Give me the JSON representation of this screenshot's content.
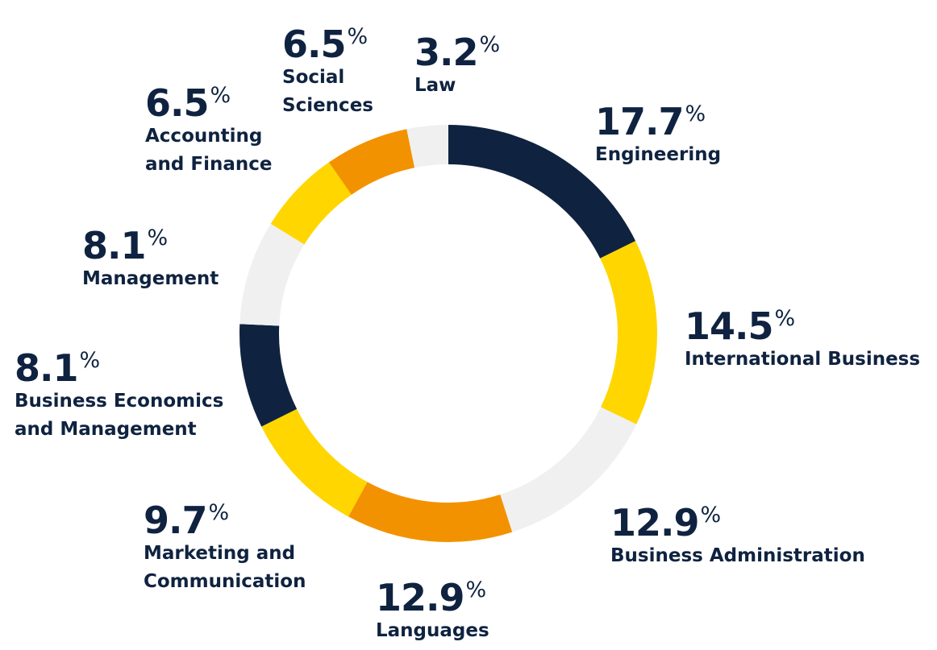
{
  "chart_data": {
    "type": "pie",
    "donut": true,
    "percent_symbol": "%",
    "colors": {
      "navy": "#0f2340",
      "yellow": "#ffd600",
      "light_gray": "#f0f0f0",
      "orange": "#f39200"
    },
    "slices": [
      {
        "key": "engineering",
        "value": 17.7,
        "value_label": "17.7",
        "label_lines": [
          "Engineering"
        ],
        "color": "#0f2340"
      },
      {
        "key": "international-business",
        "value": 14.5,
        "value_label": "14.5",
        "label_lines": [
          "International Business"
        ],
        "color": "#ffd600"
      },
      {
        "key": "business-administration",
        "value": 12.9,
        "value_label": "12.9",
        "label_lines": [
          "Business Administration"
        ],
        "color": "#f0f0f0"
      },
      {
        "key": "languages",
        "value": 12.9,
        "value_label": "12.9",
        "label_lines": [
          "Languages"
        ],
        "color": "#f39200"
      },
      {
        "key": "marketing-and-communication",
        "value": 9.7,
        "value_label": "9.7",
        "label_lines": [
          "Marketing and",
          "Communication"
        ],
        "color": "#ffd600"
      },
      {
        "key": "business-economics-and-management",
        "value": 8.1,
        "value_label": "8.1",
        "label_lines": [
          "Business Economics",
          "and Management"
        ],
        "color": "#0f2340"
      },
      {
        "key": "management",
        "value": 8.1,
        "value_label": "8.1",
        "label_lines": [
          "Management"
        ],
        "color": "#f0f0f0"
      },
      {
        "key": "accounting-and-finance",
        "value": 6.5,
        "value_label": "6.5",
        "label_lines": [
          "Accounting",
          "and Finance"
        ],
        "color": "#ffd600"
      },
      {
        "key": "social-sciences",
        "value": 6.5,
        "value_label": "6.5",
        "label_lines": [
          "Social",
          "Sciences"
        ],
        "color": "#f39200"
      },
      {
        "key": "law",
        "value": 3.2,
        "value_label": "3.2",
        "label_lines": [
          "Law"
        ],
        "color": "#f0f0f0"
      }
    ]
  }
}
